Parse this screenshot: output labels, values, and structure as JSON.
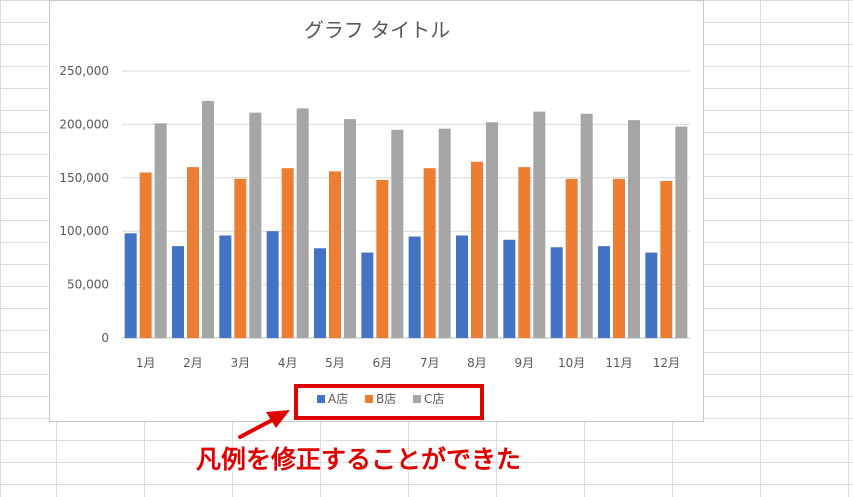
{
  "chart_data": {
    "type": "bar",
    "title": "グラフ タイトル",
    "categories": [
      "1月",
      "2月",
      "3月",
      "4月",
      "5月",
      "6月",
      "7月",
      "8月",
      "9月",
      "10月",
      "11月",
      "12月"
    ],
    "series": [
      {
        "name": "A店",
        "color": "#4472c4",
        "values": [
          98000,
          86000,
          96000,
          100000,
          84000,
          80000,
          95000,
          96000,
          92000,
          85000,
          86000,
          80000
        ]
      },
      {
        "name": "B店",
        "color": "#ed7d31",
        "values": [
          155000,
          160000,
          149000,
          159000,
          156000,
          148000,
          159000,
          165000,
          160000,
          149000,
          149000,
          147000
        ]
      },
      {
        "name": "C店",
        "color": "#a5a5a5",
        "values": [
          201000,
          222000,
          211000,
          215000,
          205000,
          195000,
          196000,
          202000,
          212000,
          210000,
          204000,
          198000
        ]
      }
    ],
    "ylim": [
      0,
      250000
    ],
    "yticks": [
      "0",
      "50,000",
      "100,000",
      "150,000",
      "200,000",
      "250,000"
    ],
    "yticks_values": [
      0,
      50000,
      100000,
      150000,
      200000,
      250000
    ],
    "grid": true,
    "legend_position": "bottom",
    "legend_highlight_color": "#e00000"
  },
  "annotation": {
    "text": "凡例を修正することができた",
    "color": "#e00000"
  }
}
